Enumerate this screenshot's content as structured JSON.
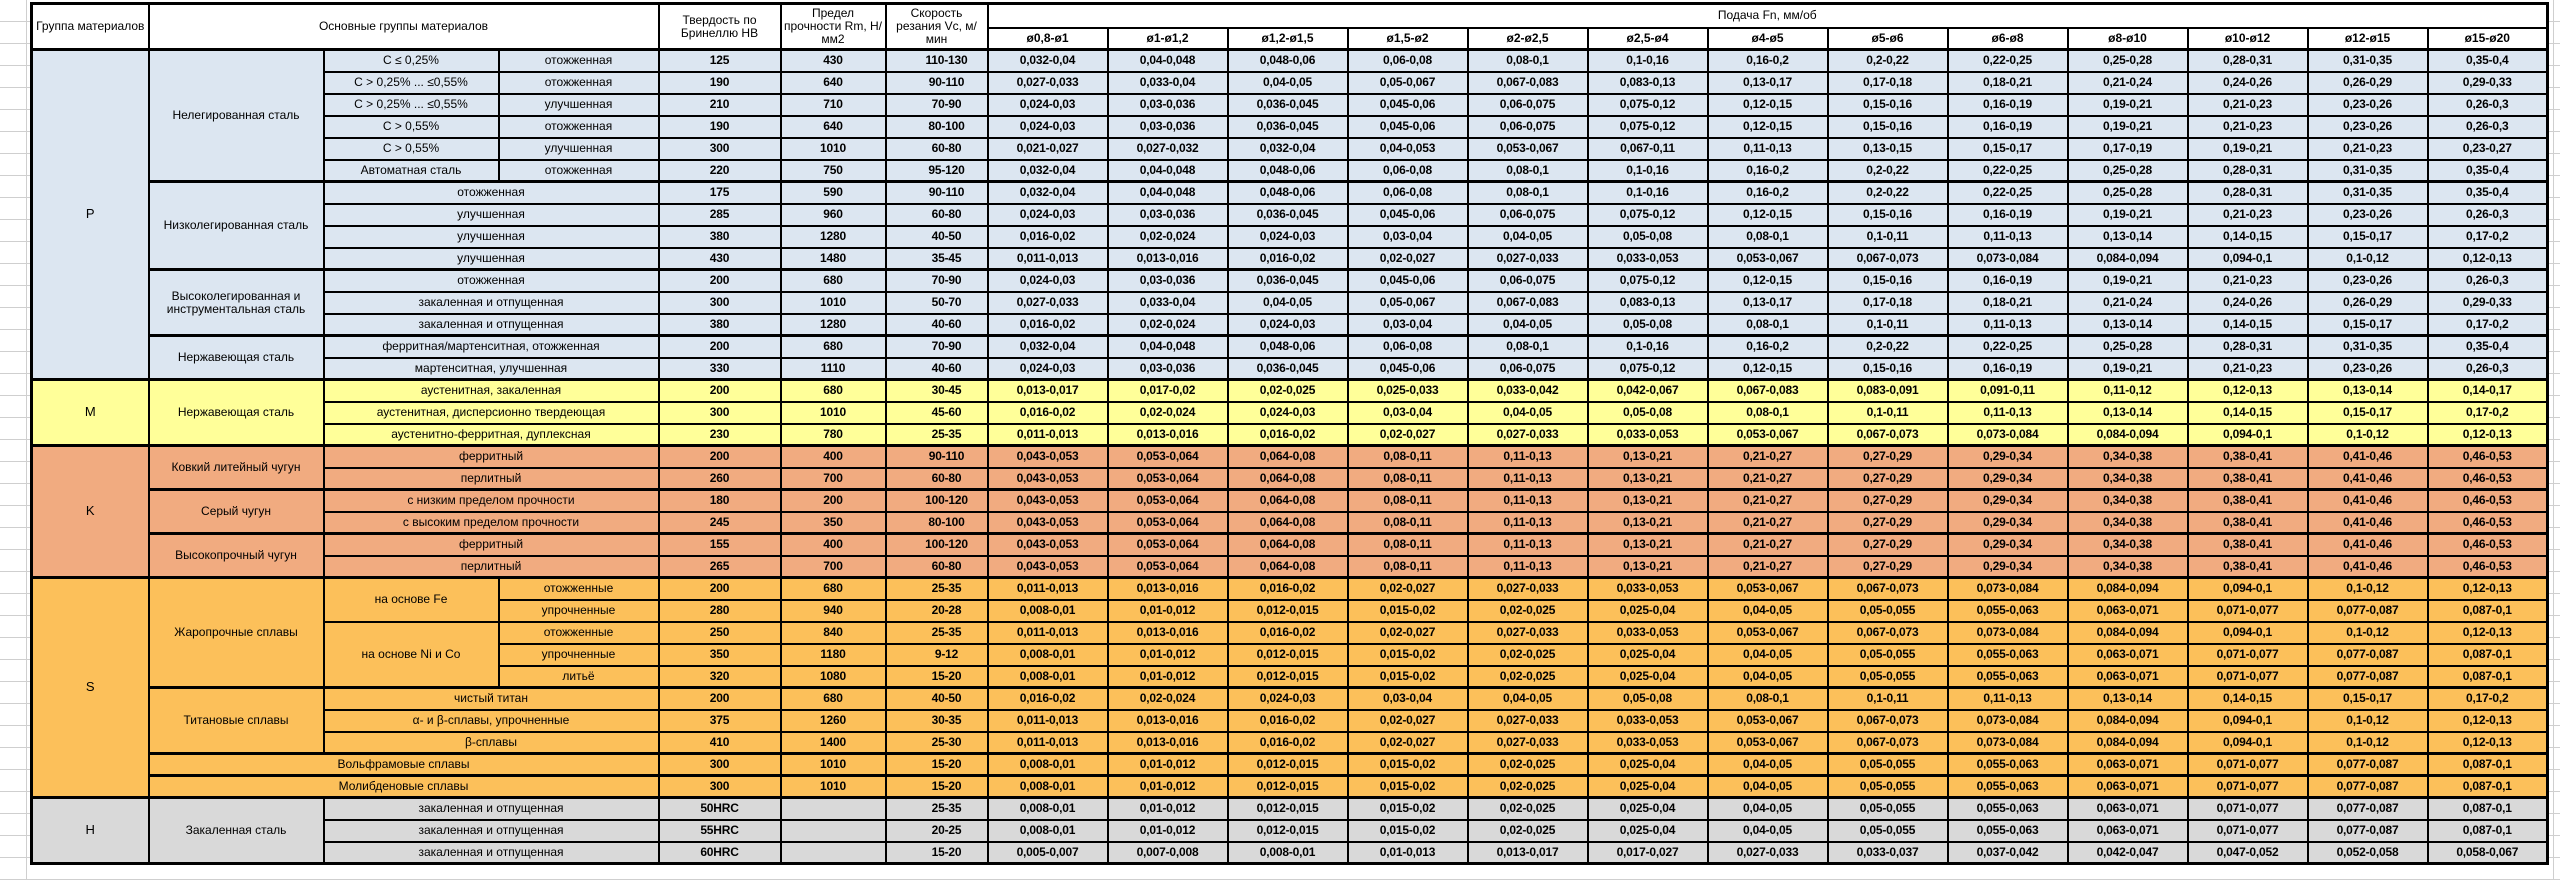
{
  "header": {
    "group": "Группа материалов",
    "main_groups": "Основные группы материалов",
    "hardness": "Твердость по Бринеллю HB",
    "strength": "Предел прочности Rm, Н/мм2",
    "speed": "Скорость резания Vc, м/мин",
    "feed": "Подача Fn, мм/об",
    "diameters": [
      "ø0,8-ø1",
      "ø1-ø1,2",
      "ø1,2-ø1,5",
      "ø1,5-ø2",
      "ø2-ø2,5",
      "ø2,5-ø4",
      "ø4-ø5",
      "ø5-ø6",
      "ø6-ø8",
      "ø8-ø10",
      "ø10-ø12",
      "ø12-ø15",
      "ø15-ø20"
    ]
  },
  "feed_sets": {
    "A": [
      "0,032-0,04",
      "0,04-0,048",
      "0,048-0,06",
      "0,06-0,08",
      "0,08-0,1",
      "0,1-0,16",
      "0,16-0,2",
      "0,2-0,22",
      "0,22-0,25",
      "0,25-0,28",
      "0,28-0,31",
      "0,31-0,35",
      "0,35-0,4"
    ],
    "B": [
      "0,027-0,033",
      "0,033-0,04",
      "0,04-0,05",
      "0,05-0,067",
      "0,067-0,083",
      "0,083-0,13",
      "0,13-0,17",
      "0,17-0,18",
      "0,18-0,21",
      "0,21-0,24",
      "0,24-0,26",
      "0,26-0,29",
      "0,29-0,33"
    ],
    "C": [
      "0,024-0,03",
      "0,03-0,036",
      "0,036-0,045",
      "0,045-0,06",
      "0,06-0,075",
      "0,075-0,12",
      "0,12-0,15",
      "0,15-0,16",
      "0,16-0,19",
      "0,19-0,21",
      "0,21-0,23",
      "0,23-0,26",
      "0,26-0,3"
    ],
    "D": [
      "0,021-0,027",
      "0,027-0,032",
      "0,032-0,04",
      "0,04-0,053",
      "0,053-0,067",
      "0,067-0,11",
      "0,11-0,13",
      "0,13-0,15",
      "0,15-0,17",
      "0,17-0,19",
      "0,19-0,21",
      "0,21-0,23",
      "0,23-0,27"
    ],
    "E": [
      "0,016-0,02",
      "0,02-0,024",
      "0,024-0,03",
      "0,03-0,04",
      "0,04-0,05",
      "0,05-0,08",
      "0,08-0,1",
      "0,1-0,11",
      "0,11-0,13",
      "0,13-0,14",
      "0,14-0,15",
      "0,15-0,17",
      "0,17-0,2"
    ],
    "F": [
      "0,011-0,013",
      "0,013-0,016",
      "0,016-0,02",
      "0,02-0,027",
      "0,027-0,033",
      "0,033-0,053",
      "0,053-0,067",
      "0,067-0,073",
      "0,073-0,084",
      "0,084-0,094",
      "0,094-0,1",
      "0,1-0,12",
      "0,12-0,13"
    ],
    "G": [
      "0,013-0,017",
      "0,017-0,02",
      "0,02-0,025",
      "0,025-0,033",
      "0,033-0,042",
      "0,042-0,067",
      "0,067-0,083",
      "0,083-0,091",
      "0,091-0,11",
      "0,11-0,12",
      "0,12-0,13",
      "0,13-0,14",
      "0,14-0,17"
    ],
    "H": [
      "0,043-0,053",
      "0,053-0,064",
      "0,064-0,08",
      "0,08-0,11",
      "0,11-0,13",
      "0,13-0,21",
      "0,21-0,27",
      "0,27-0,29",
      "0,29-0,34",
      "0,34-0,38",
      "0,38-0,41",
      "0,41-0,46",
      "0,46-0,53"
    ],
    "I": [
      "0,008-0,01",
      "0,01-0,012",
      "0,012-0,015",
      "0,015-0,02",
      "0,02-0,025",
      "0,025-0,04",
      "0,04-0,05",
      "0,05-0,055",
      "0,055-0,063",
      "0,063-0,071",
      "0,071-0,077",
      "0,077-0,087",
      "0,087-0,1"
    ],
    "J": [
      "0,005-0,007",
      "0,007-0,008",
      "0,008-0,01",
      "0,01-0,013",
      "0,013-0,017",
      "0,017-0,027",
      "0,027-0,033",
      "0,033-0,037",
      "0,037-0,042",
      "0,042-0,047",
      "0,047-0,052",
      "0,052-0,058",
      "0,058-0,067"
    ]
  },
  "groups": [
    {
      "code": "P",
      "color": "#dce6f1",
      "rows": [
        {
          "cells": [
            {
              "t": "P",
              "rs": 15,
              "k": "group"
            },
            {
              "t": "Нелегированная сталь",
              "rs": 6,
              "k": "cat"
            },
            {
              "t": "C ≤ 0,25%",
              "k": "sub"
            },
            {
              "t": "отожженная",
              "k": "treat"
            }
          ],
          "hb": "125",
          "rm": "430",
          "vc": "110-130",
          "fs": "A",
          "block": true
        },
        {
          "cells": [
            {
              "t": "C > 0,25% ... ≤0,55%",
              "k": "sub"
            },
            {
              "t": "отожженная",
              "k": "treat"
            }
          ],
          "hb": "190",
          "rm": "640",
          "vc": "90-110",
          "fs": "B"
        },
        {
          "cells": [
            {
              "t": "C > 0,25% ... ≤0,55%",
              "k": "sub"
            },
            {
              "t": "улучшенная",
              "k": "treat"
            }
          ],
          "hb": "210",
          "rm": "710",
          "vc": "70-90",
          "fs": "C"
        },
        {
          "cells": [
            {
              "t": "C > 0,55%",
              "k": "sub"
            },
            {
              "t": "отожженная",
              "k": "treat"
            }
          ],
          "hb": "190",
          "rm": "640",
          "vc": "80-100",
          "fs": "C"
        },
        {
          "cells": [
            {
              "t": "C > 0,55%",
              "k": "sub"
            },
            {
              "t": "улучшенная",
              "k": "treat"
            }
          ],
          "hb": "300",
          "rm": "1010",
          "vc": "60-80",
          "fs": "D"
        },
        {
          "cells": [
            {
              "t": "Автоматная сталь",
              "k": "sub"
            },
            {
              "t": "отожженная",
              "k": "treat"
            }
          ],
          "hb": "220",
          "rm": "750",
          "vc": "95-120",
          "fs": "A"
        },
        {
          "cells": [
            {
              "t": "Низколегированная сталь",
              "rs": 4,
              "k": "cat"
            },
            {
              "t": "отожженная",
              "cs": 2,
              "k": "sub"
            }
          ],
          "hb": "175",
          "rm": "590",
          "vc": "90-110",
          "fs": "A",
          "block": true
        },
        {
          "cells": [
            {
              "t": "улучшенная",
              "cs": 2,
              "k": "sub"
            }
          ],
          "hb": "285",
          "rm": "960",
          "vc": "60-80",
          "fs": "C"
        },
        {
          "cells": [
            {
              "t": "улучшенная",
              "cs": 2,
              "k": "sub"
            }
          ],
          "hb": "380",
          "rm": "1280",
          "vc": "40-50",
          "fs": "E"
        },
        {
          "cells": [
            {
              "t": "улучшенная",
              "cs": 2,
              "k": "sub"
            }
          ],
          "hb": "430",
          "rm": "1480",
          "vc": "35-45",
          "fs": "F"
        },
        {
          "cells": [
            {
              "t": "Высоколегированная и инструментальная сталь",
              "rs": 3,
              "k": "cat"
            },
            {
              "t": "отожженная",
              "cs": 2,
              "k": "sub"
            }
          ],
          "hb": "200",
          "rm": "680",
          "vc": "70-90",
          "fs": "C",
          "block": true
        },
        {
          "cells": [
            {
              "t": "закаленная и отпущенная",
              "cs": 2,
              "k": "sub"
            }
          ],
          "hb": "300",
          "rm": "1010",
          "vc": "50-70",
          "fs": "B"
        },
        {
          "cells": [
            {
              "t": "закаленная и отпущенная",
              "cs": 2,
              "k": "sub"
            }
          ],
          "hb": "380",
          "rm": "1280",
          "vc": "40-60",
          "fs": "E"
        },
        {
          "cells": [
            {
              "t": "Нержавеющая сталь",
              "rs": 2,
              "k": "cat"
            },
            {
              "t": "ферритная/мартенситная, отожженная",
              "cs": 2,
              "k": "sub"
            }
          ],
          "hb": "200",
          "rm": "680",
          "vc": "70-90",
          "fs": "A",
          "block": true
        },
        {
          "cells": [
            {
              "t": "мартенситная, улучшенная",
              "cs": 2,
              "k": "sub"
            }
          ],
          "hb": "330",
          "rm": "1110",
          "vc": "40-60",
          "fs": "C"
        }
      ]
    },
    {
      "code": "M",
      "color": "#ffff99",
      "rows": [
        {
          "cells": [
            {
              "t": "M",
              "rs": 3,
              "k": "group"
            },
            {
              "t": "Нержавеющая сталь",
              "rs": 3,
              "k": "cat"
            },
            {
              "t": "аустенитная, закаленная",
              "cs": 2,
              "k": "sub"
            }
          ],
          "hb": "200",
          "rm": "680",
          "vc": "30-45",
          "fs": "G",
          "block": true
        },
        {
          "cells": [
            {
              "t": "аустенитная, дисперсионно твердеющая",
              "cs": 2,
              "k": "sub"
            }
          ],
          "hb": "300",
          "rm": "1010",
          "vc": "45-60",
          "fs": "E"
        },
        {
          "cells": [
            {
              "t": "аустенитно-ферритная, дуплексная",
              "cs": 2,
              "k": "sub"
            }
          ],
          "hb": "230",
          "rm": "780",
          "vc": "25-35",
          "fs": "F"
        }
      ]
    },
    {
      "code": "K",
      "color": "#f1ab80",
      "rows": [
        {
          "cells": [
            {
              "t": "K",
              "rs": 6,
              "k": "group"
            },
            {
              "t": "Ковкий литейный чугун",
              "rs": 2,
              "k": "cat"
            },
            {
              "t": "ферритный",
              "cs": 2,
              "k": "sub"
            }
          ],
          "hb": "200",
          "rm": "400",
          "vc": "90-110",
          "fs": "H",
          "block": true
        },
        {
          "cells": [
            {
              "t": "перлитный",
              "cs": 2,
              "k": "sub"
            }
          ],
          "hb": "260",
          "rm": "700",
          "vc": "60-80",
          "fs": "H"
        },
        {
          "cells": [
            {
              "t": "Серый чугун",
              "rs": 2,
              "k": "cat"
            },
            {
              "t": "с низким пределом прочности",
              "cs": 2,
              "k": "sub"
            }
          ],
          "hb": "180",
          "rm": "200",
          "vc": "100-120",
          "fs": "H",
          "block": true
        },
        {
          "cells": [
            {
              "t": "с высоким пределом прочности",
              "cs": 2,
              "k": "sub"
            }
          ],
          "hb": "245",
          "rm": "350",
          "vc": "80-100",
          "fs": "H"
        },
        {
          "cells": [
            {
              "t": "Высокопрочный чугун",
              "rs": 2,
              "k": "cat"
            },
            {
              "t": "ферритный",
              "cs": 2,
              "k": "sub"
            }
          ],
          "hb": "155",
          "rm": "400",
          "vc": "100-120",
          "fs": "H",
          "block": true
        },
        {
          "cells": [
            {
              "t": "перлитный",
              "cs": 2,
              "k": "sub"
            }
          ],
          "hb": "265",
          "rm": "700",
          "vc": "60-80",
          "fs": "H"
        }
      ]
    },
    {
      "code": "S",
      "color": "#fcc05a",
      "rows": [
        {
          "cells": [
            {
              "t": "S",
              "rs": 10,
              "k": "group"
            },
            {
              "t": "Жаропрочные сплавы",
              "rs": 5,
              "k": "cat"
            },
            {
              "t": "на основе Fe",
              "rs": 2,
              "k": "sub"
            },
            {
              "t": "отожженные",
              "k": "treat"
            }
          ],
          "hb": "200",
          "rm": "680",
          "vc": "25-35",
          "fs": "F",
          "block": true
        },
        {
          "cells": [
            {
              "t": "упрочненные",
              "k": "treat"
            }
          ],
          "hb": "280",
          "rm": "940",
          "vc": "20-28",
          "fs": "I"
        },
        {
          "cells": [
            {
              "t": "на основе Ni и Co",
              "rs": 3,
              "k": "sub"
            },
            {
              "t": "отожженные",
              "k": "treat"
            }
          ],
          "hb": "250",
          "rm": "840",
          "vc": "25-35",
          "fs": "F"
        },
        {
          "cells": [
            {
              "t": "упрочненные",
              "k": "treat"
            }
          ],
          "hb": "350",
          "rm": "1180",
          "vc": "9-12",
          "fs": "I"
        },
        {
          "cells": [
            {
              "t": "литьё",
              "k": "treat"
            }
          ],
          "hb": "320",
          "rm": "1080",
          "vc": "15-20",
          "fs": "I"
        },
        {
          "cells": [
            {
              "t": "Титановые сплавы",
              "rs": 3,
              "k": "cat"
            },
            {
              "t": "чистый титан",
              "cs": 2,
              "k": "sub"
            }
          ],
          "hb": "200",
          "rm": "680",
          "vc": "40-50",
          "fs": "E",
          "block": true
        },
        {
          "cells": [
            {
              "t": "α- и β-сплавы, упрочненные",
              "cs": 2,
              "k": "sub"
            }
          ],
          "hb": "375",
          "rm": "1260",
          "vc": "30-35",
          "fs": "F"
        },
        {
          "cells": [
            {
              "t": "β-сплавы",
              "cs": 2,
              "k": "sub"
            }
          ],
          "hb": "410",
          "rm": "1400",
          "vc": "25-30",
          "fs": "F"
        },
        {
          "cells": [
            {
              "t": "Вольфрамовые сплавы",
              "cs": 3,
              "k": "cat"
            }
          ],
          "hb": "300",
          "rm": "1010",
          "vc": "15-20",
          "fs": "I",
          "block": true
        },
        {
          "cells": [
            {
              "t": "Молибденовые сплавы",
              "cs": 3,
              "k": "cat"
            }
          ],
          "hb": "300",
          "rm": "1010",
          "vc": "15-20",
          "fs": "I",
          "block": true
        }
      ]
    },
    {
      "code": "H",
      "color": "#d9d9d9",
      "rows": [
        {
          "cells": [
            {
              "t": "H",
              "rs": 3,
              "k": "group"
            },
            {
              "t": "Закаленная сталь",
              "rs": 3,
              "k": "cat"
            },
            {
              "t": "закаленная и отпущенная",
              "cs": 2,
              "k": "sub"
            }
          ],
          "hb": "50HRC",
          "rm": "",
          "vc": "25-35",
          "fs": "I",
          "block": true
        },
        {
          "cells": [
            {
              "t": "закаленная и отпущенная",
              "cs": 2,
              "k": "sub"
            }
          ],
          "hb": "55HRC",
          "rm": "",
          "vc": "20-25",
          "fs": "I"
        },
        {
          "cells": [
            {
              "t": "закаленная и отпущенная",
              "cs": 2,
              "k": "sub"
            }
          ],
          "hb": "60HRC",
          "rm": "",
          "vc": "15-20",
          "fs": "J"
        }
      ]
    }
  ]
}
